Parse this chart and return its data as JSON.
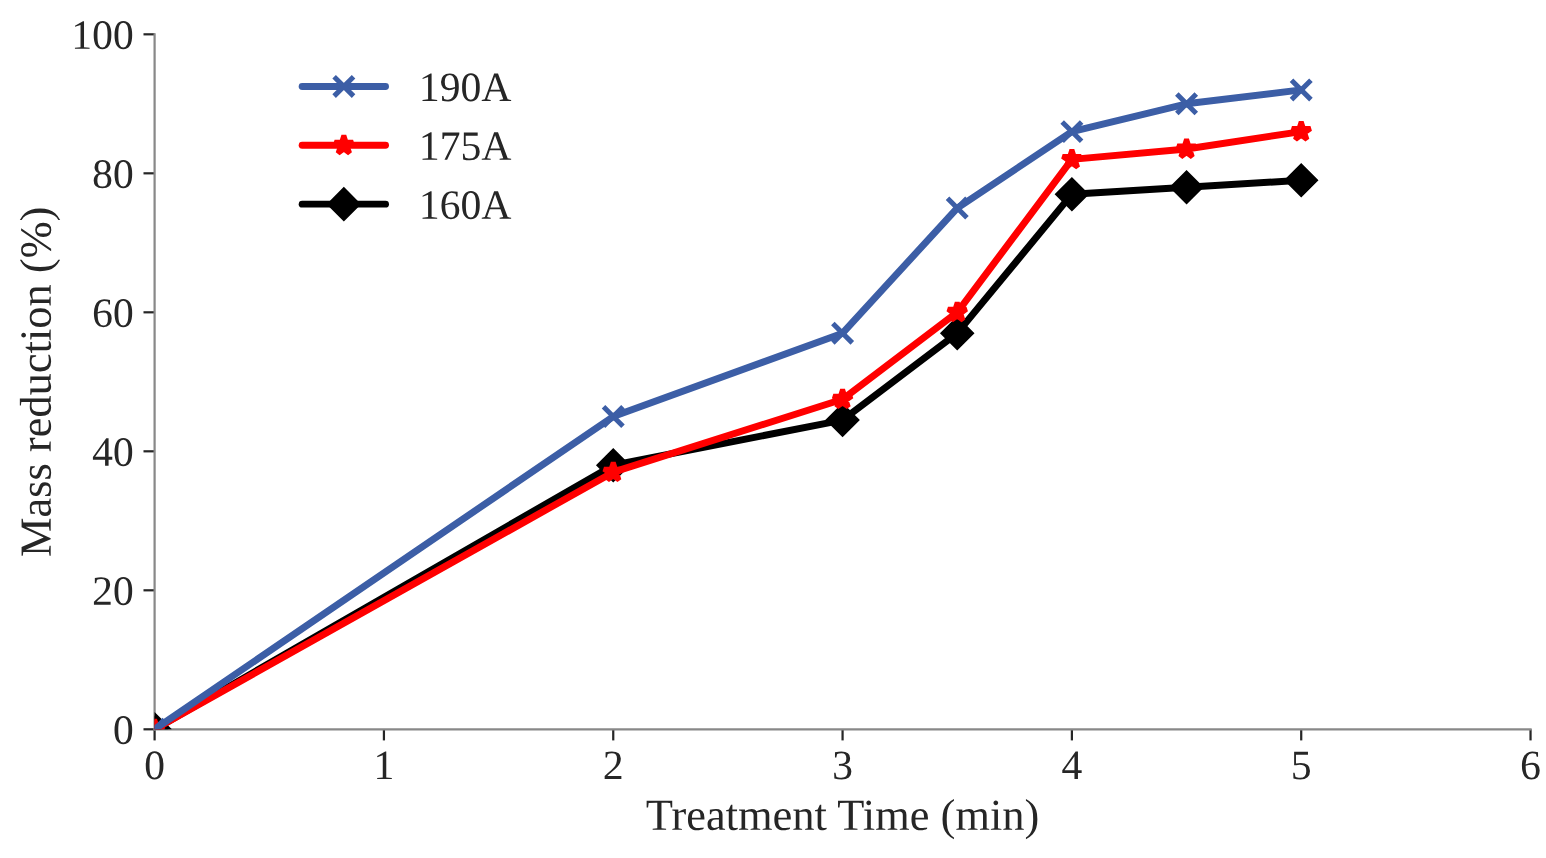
{
  "chart_data": {
    "type": "line",
    "xlabel": "Treatment Time (min)",
    "ylabel": "Mass reduction (%)",
    "xlim": [
      0,
      6
    ],
    "xticks": [
      0,
      1,
      2,
      3,
      4,
      5,
      6
    ],
    "ylim": [
      0,
      100
    ],
    "yticks": [
      0,
      20,
      40,
      60,
      80,
      100
    ],
    "x": [
      0,
      2,
      3,
      3.5,
      4,
      4.5,
      5
    ],
    "series": [
      {
        "name": "190A",
        "color": "#3c5ea6",
        "marker": "cross",
        "values": [
          0,
          45,
          57,
          75,
          86,
          90,
          92
        ]
      },
      {
        "name": "175A",
        "color": "#ff0000",
        "marker": "star",
        "values": [
          0,
          37,
          47.5,
          60,
          82,
          83.5,
          86
        ]
      },
      {
        "name": "160A",
        "color": "#000000",
        "marker": "diamond",
        "values": [
          0,
          38,
          44.5,
          57,
          77,
          78,
          79
        ]
      }
    ],
    "grid": false,
    "legend": "top left",
    "line_style": "solid"
  }
}
